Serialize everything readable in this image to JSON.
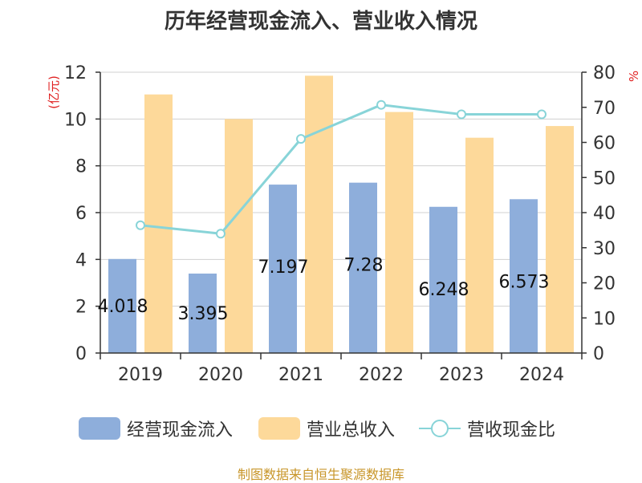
{
  "chart_data": {
    "type": "bar",
    "title": "历年经营现金流入、营业收入情况",
    "categories": [
      "2019",
      "2020",
      "2021",
      "2022",
      "2023",
      "2024"
    ],
    "y_left": {
      "label": "(亿元)",
      "ylim": [
        0,
        12
      ],
      "ticks": [
        "0",
        "2",
        "4",
        "6",
        "8",
        "10",
        "12"
      ]
    },
    "y_right": {
      "label": "%",
      "ylim": [
        0,
        80
      ],
      "ticks": [
        "0",
        "10",
        "20",
        "30",
        "40",
        "50",
        "60",
        "70",
        "80"
      ]
    },
    "series": [
      {
        "name": "经营现金流入",
        "kind": "bar",
        "axis": "left",
        "color": "#8eaedb",
        "values": [
          4.018,
          3.395,
          7.197,
          7.28,
          6.248,
          6.573
        ],
        "labels": [
          "4.018",
          "3.395",
          "7.197",
          "7.28",
          "6.248",
          "6.573"
        ]
      },
      {
        "name": "营业总收入",
        "kind": "bar",
        "axis": "left",
        "color": "#fdd99a",
        "values": [
          11.05,
          10.0,
          11.85,
          10.3,
          9.2,
          9.7
        ]
      },
      {
        "name": "营收现金比",
        "kind": "line",
        "axis": "right",
        "color": "#88d4d8",
        "values": [
          36.4,
          34.0,
          61.0,
          70.7,
          68.0,
          68.0
        ]
      }
    ],
    "grid": true,
    "legend_position": "bottom"
  },
  "footer": "制图数据来自恒生聚源数据库"
}
